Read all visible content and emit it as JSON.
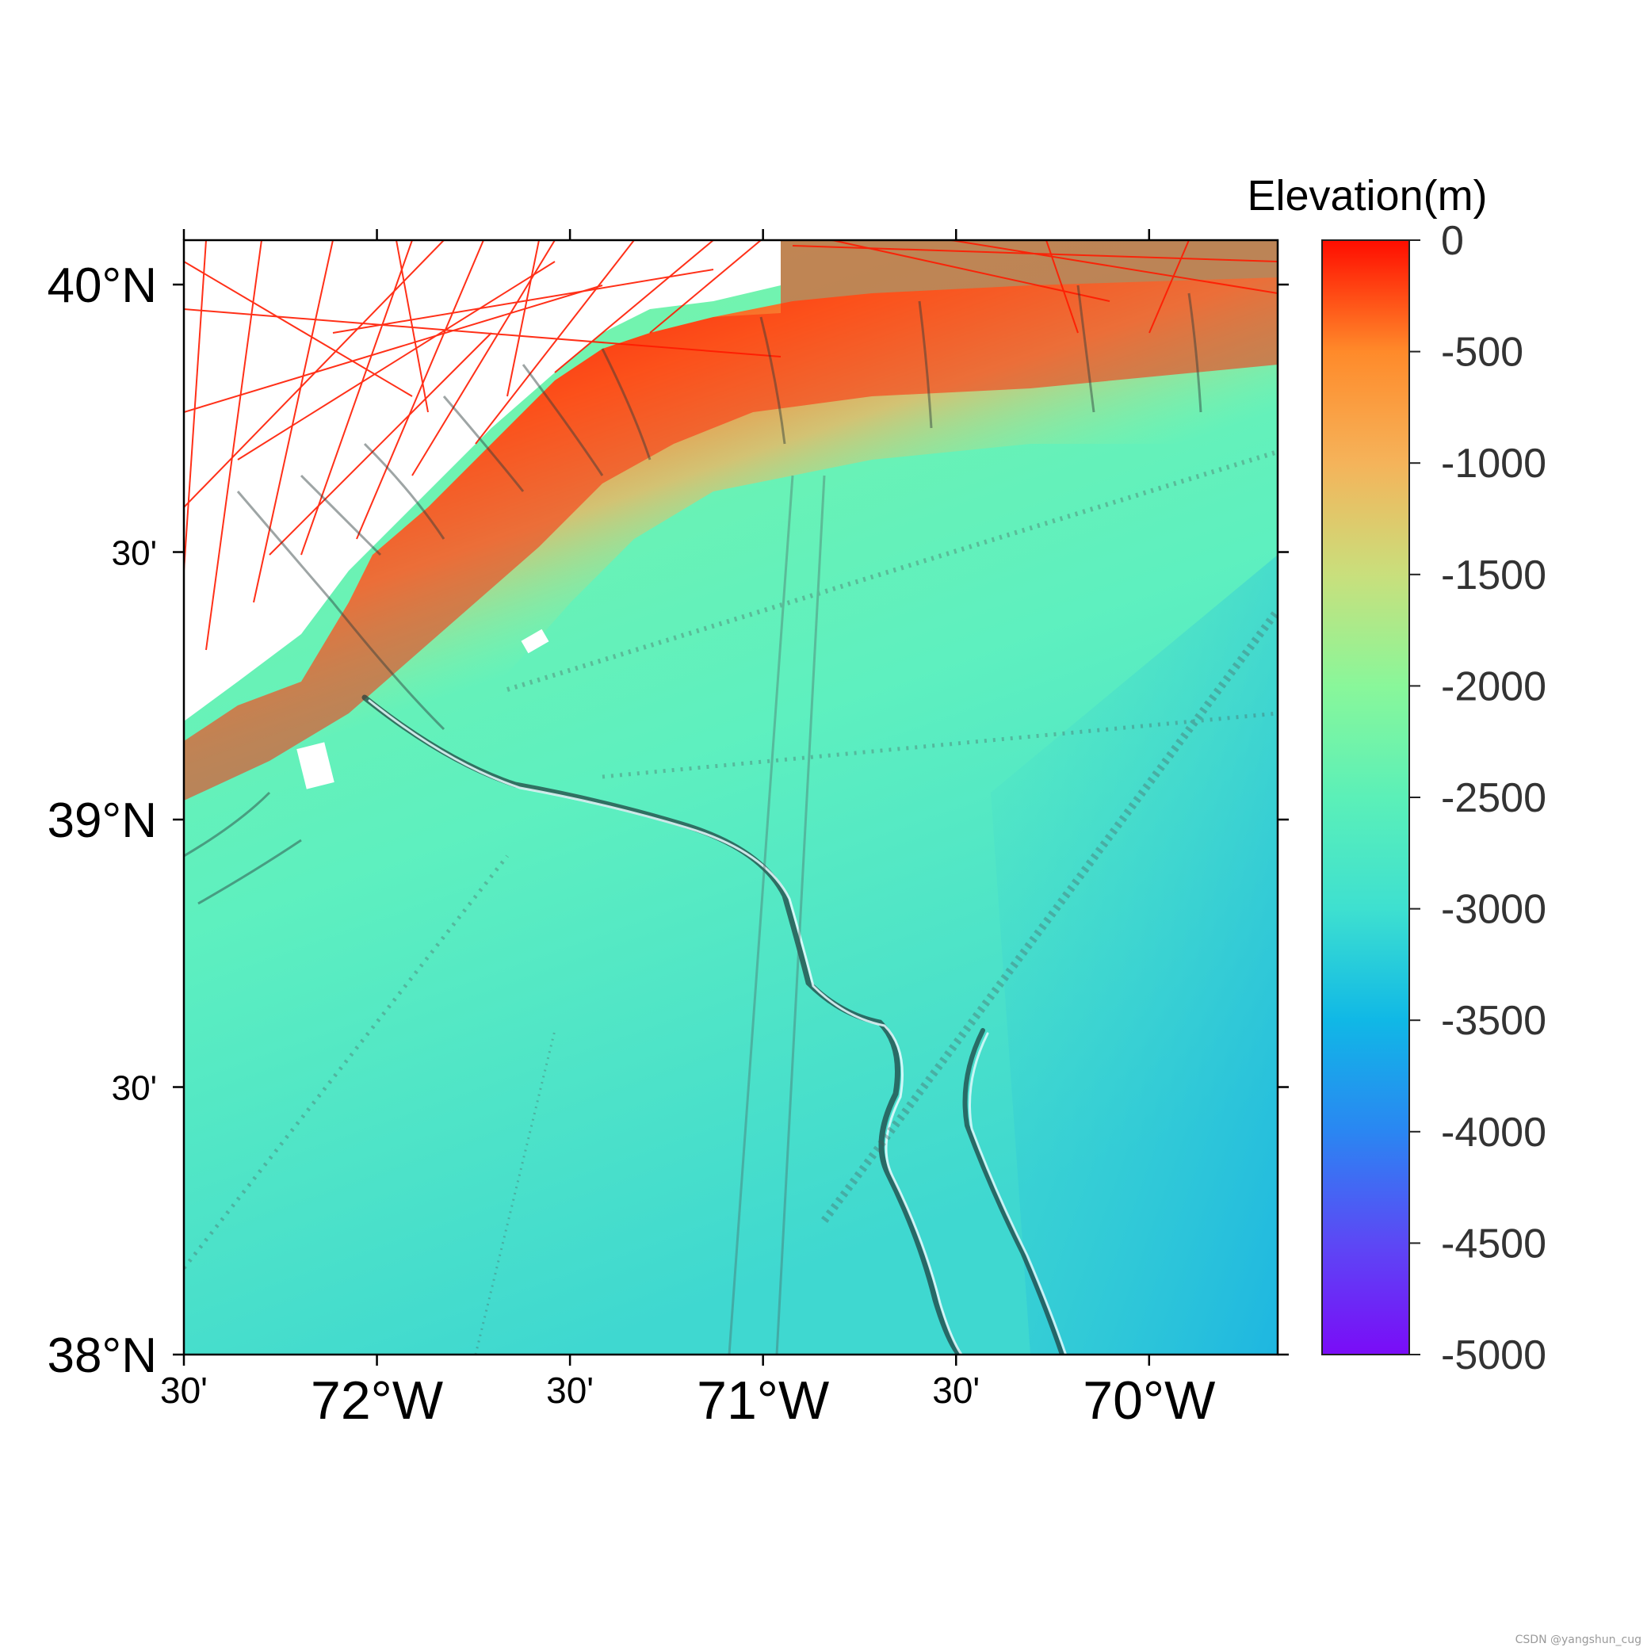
{
  "map": {
    "lon_range": [
      -72.5,
      -69.667
    ],
    "lat_range": [
      38.0,
      40.083
    ],
    "x_ticks": [
      {
        "lon": -72.5,
        "label": "30'",
        "major": false
      },
      {
        "lon": -72.0,
        "label": "72°W",
        "major": true
      },
      {
        "lon": -71.5,
        "label": "30'",
        "major": false
      },
      {
        "lon": -71.0,
        "label": "71°W",
        "major": true
      },
      {
        "lon": -70.5,
        "label": "30'",
        "major": false
      },
      {
        "lon": -70.0,
        "label": "70°W",
        "major": true
      }
    ],
    "y_ticks": [
      {
        "lat": 40.0,
        "label": "40°N",
        "major": true
      },
      {
        "lat": 39.5,
        "label": "30'",
        "major": false
      },
      {
        "lat": 39.0,
        "label": "39°N",
        "major": true
      },
      {
        "lat": 38.5,
        "label": "30'",
        "major": false
      },
      {
        "lat": 38.0,
        "label": "38°N",
        "major": true
      }
    ]
  },
  "colorbar": {
    "title": "Elevation(m)",
    "range": [
      -5000,
      0
    ],
    "ticks": [
      "0",
      "-500",
      "-1000",
      "-1500",
      "-2000",
      "-2500",
      "-3000",
      "-3500",
      "-4000",
      "-4500",
      "-5000"
    ],
    "colormap": [
      "#ff0d00",
      "#ff8a2a",
      "#f5b35a",
      "#c9df7c",
      "#89f79a",
      "#5bf0b8",
      "#3ee0d0",
      "#10b8e6",
      "#2a86f2",
      "#5c48f5",
      "#7a0cf7"
    ]
  },
  "watermark": "CSDN @yangshun_cug"
}
